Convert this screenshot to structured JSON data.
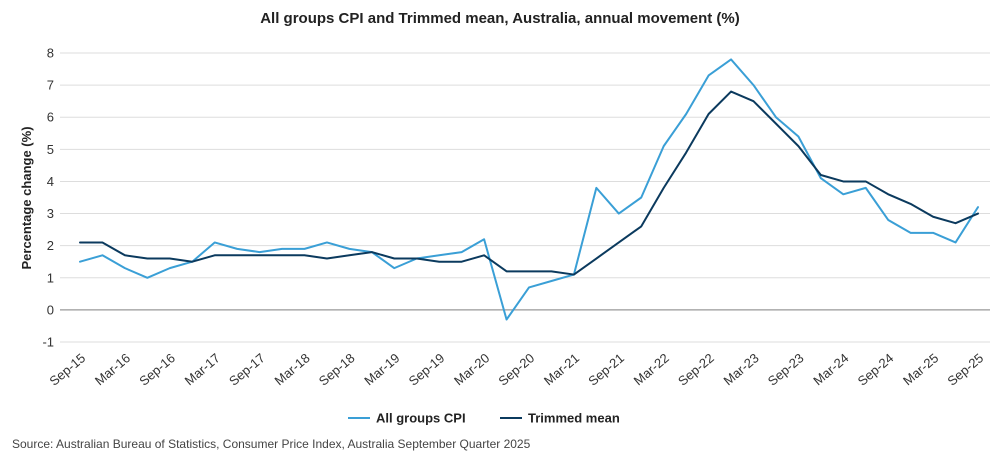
{
  "chart_data": {
    "type": "line",
    "title": "All groups CPI and Trimmed mean, Australia, annual movement (%)",
    "xlabel": "",
    "ylabel": "Percentage change (%)",
    "ylim": [
      -1,
      8
    ],
    "yticks": [
      -1,
      0,
      1,
      2,
      3,
      4,
      5,
      6,
      7,
      8
    ],
    "grid": true,
    "legend_position": "bottom",
    "x": [
      "Sep-15",
      "Dec-15",
      "Mar-16",
      "Jun-16",
      "Sep-16",
      "Dec-16",
      "Mar-17",
      "Jun-17",
      "Sep-17",
      "Dec-17",
      "Mar-18",
      "Jun-18",
      "Sep-18",
      "Dec-18",
      "Mar-19",
      "Jun-19",
      "Sep-19",
      "Dec-19",
      "Mar-20",
      "Jun-20",
      "Sep-20",
      "Dec-20",
      "Mar-21",
      "Jun-21",
      "Sep-21",
      "Dec-21",
      "Mar-22",
      "Jun-22",
      "Sep-22",
      "Dec-22",
      "Mar-23",
      "Jun-23",
      "Sep-23",
      "Dec-23",
      "Mar-24",
      "Jun-24",
      "Sep-24",
      "Dec-24",
      "Mar-25",
      "Jun-25",
      "Sep-25"
    ],
    "xtick_labels": [
      "Sep-15",
      "Mar-16",
      "Sep-16",
      "Mar-17",
      "Sep-17",
      "Mar-18",
      "Sep-18",
      "Mar-19",
      "Sep-19",
      "Mar-20",
      "Sep-20",
      "Mar-21",
      "Sep-21",
      "Mar-22",
      "Sep-22",
      "Mar-23",
      "Sep-23",
      "Mar-24",
      "Sep-24",
      "Mar-25",
      "Sep-25"
    ],
    "series": [
      {
        "name": "All groups CPI",
        "color": "#3a9fd6",
        "values": [
          1.5,
          1.7,
          1.3,
          1.0,
          1.3,
          1.5,
          2.1,
          1.9,
          1.8,
          1.9,
          1.9,
          2.1,
          1.9,
          1.8,
          1.3,
          1.6,
          1.7,
          1.8,
          2.2,
          -0.3,
          0.7,
          0.9,
          1.1,
          3.8,
          3.0,
          3.5,
          5.1,
          6.1,
          7.3,
          7.8,
          7.0,
          6.0,
          5.4,
          4.1,
          3.6,
          3.8,
          2.8,
          2.4,
          2.4,
          2.1,
          3.2
        ]
      },
      {
        "name": "Trimmed mean",
        "color": "#0b3a5e",
        "values": [
          2.1,
          2.1,
          1.7,
          1.6,
          1.6,
          1.5,
          1.7,
          1.7,
          1.7,
          1.7,
          1.7,
          1.6,
          1.7,
          1.8,
          1.6,
          1.6,
          1.5,
          1.5,
          1.7,
          1.2,
          1.2,
          1.2,
          1.1,
          1.6,
          2.1,
          2.6,
          3.8,
          4.9,
          6.1,
          6.8,
          6.5,
          5.8,
          5.1,
          4.2,
          4.0,
          4.0,
          3.6,
          3.3,
          2.9,
          2.7,
          3.0
        ]
      }
    ]
  },
  "source": "Source: Australian Bureau of Statistics, Consumer Price Index, Australia September Quarter 2025"
}
